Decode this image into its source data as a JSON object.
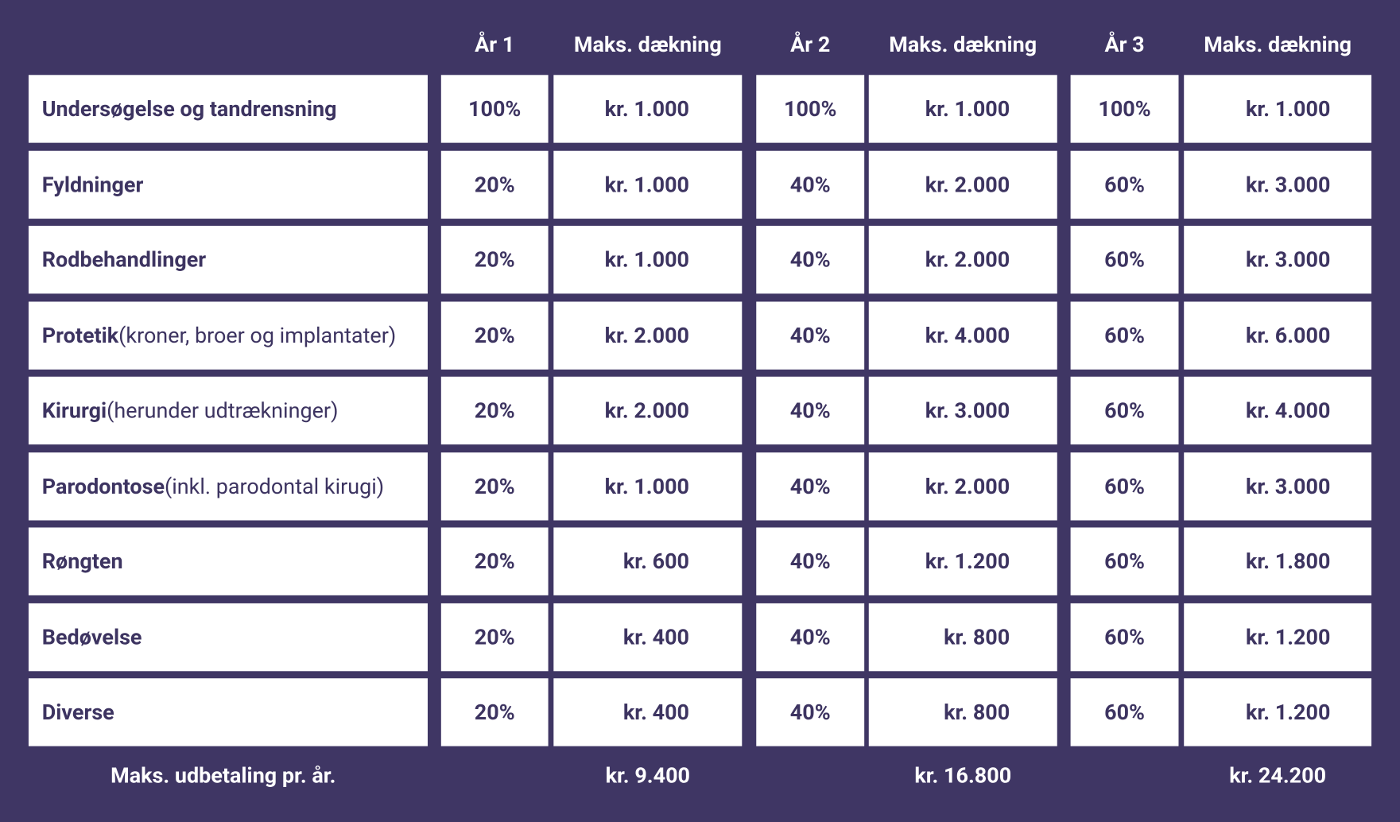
{
  "table": {
    "header": [
      "År 1",
      "Maks. dækning",
      "År 2",
      "Maks. dækning",
      "År 3",
      "Maks. dækning"
    ],
    "rows": [
      {
        "name": "Undersøgelse og tandrensning",
        "cells": [
          "100%",
          "kr. 1.000",
          "100%",
          "kr. 1.000",
          "100%",
          "kr. 1.000"
        ]
      },
      {
        "name": "Fyldninger",
        "cells": [
          "20%",
          "kr. 1.000",
          "40%",
          "kr. 2.000",
          "60%",
          "kr. 3.000"
        ]
      },
      {
        "name": "Rodbehandlinger",
        "cells": [
          "20%",
          "kr. 1.000",
          "40%",
          "kr. 2.000",
          "60%",
          "kr. 3.000"
        ]
      },
      {
        "name": "Protetik",
        "note": "(kroner, broer og implantater)",
        "cells": [
          "20%",
          "kr. 2.000",
          "40%",
          "kr. 4.000",
          "60%",
          "kr. 6.000"
        ]
      },
      {
        "name": "Kirurgi",
        "note": "(herunder udtrækninger)",
        "cells": [
          "20%",
          "kr. 2.000",
          "40%",
          "kr. 3.000",
          "60%",
          "kr. 4.000"
        ]
      },
      {
        "name": "Parodontose",
        "note": "(inkl. parodontal kirugi)",
        "cells": [
          "20%",
          "kr. 1.000",
          "40%",
          "kr. 2.000",
          "60%",
          "kr. 3.000"
        ]
      },
      {
        "name": "Røngten",
        "cells": [
          "20%",
          "kr. 600",
          "40%",
          "kr. 1.200",
          "60%",
          "kr. 1.800"
        ]
      },
      {
        "name": "Bedøvelse",
        "cells": [
          "20%",
          "kr. 400",
          "40%",
          "kr. 800",
          "60%",
          "kr. 1.200"
        ]
      },
      {
        "name": "Diverse",
        "cells": [
          "20%",
          "kr. 400",
          "40%",
          "kr. 800",
          "60%",
          "kr. 1.200"
        ]
      }
    ],
    "footer": {
      "label": "Maks. udbetaling pr. år.",
      "totals": [
        "kr. 9.400",
        "kr. 16.800",
        "kr. 24.200"
      ]
    }
  }
}
